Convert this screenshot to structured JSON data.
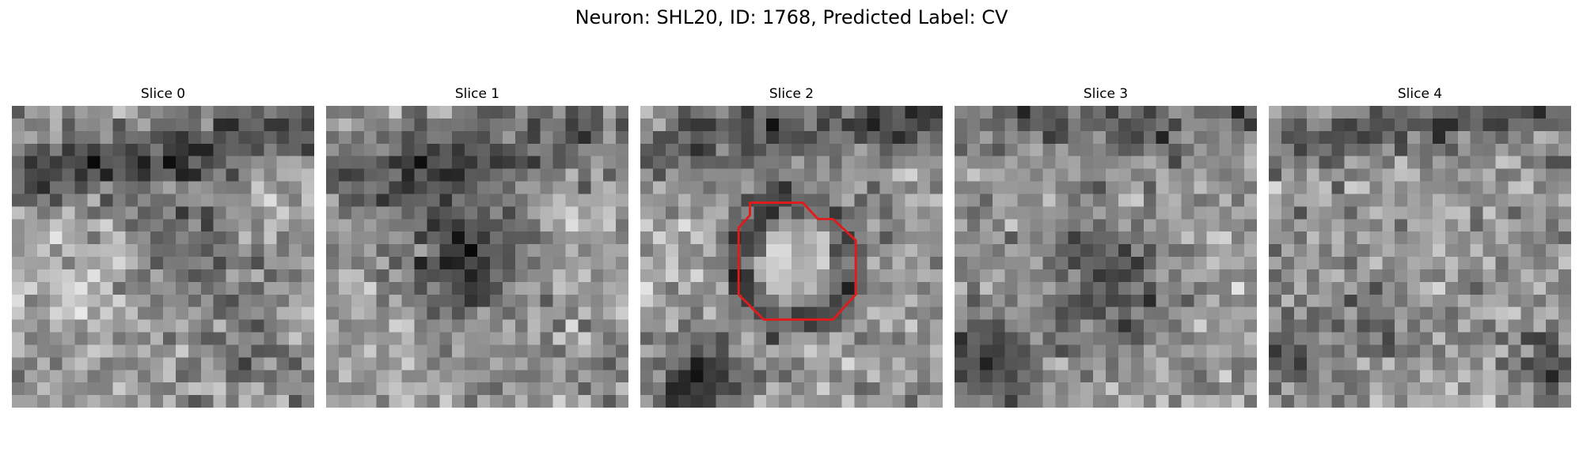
{
  "title": "Neuron: SHL20, ID: 1768, Predicted Label: CV",
  "grid_size": 24,
  "contour_color": "#e31a1c",
  "contour_slice": 2,
  "contour_points": [
    [
      8.7,
      7.7
    ],
    [
      12.9,
      7.7
    ],
    [
      14.1,
      9.0
    ],
    [
      15.3,
      9.0
    ],
    [
      17.1,
      10.7
    ],
    [
      17.1,
      15.0
    ],
    [
      15.3,
      17.0
    ],
    [
      9.8,
      17.0
    ],
    [
      7.8,
      15.0
    ],
    [
      7.8,
      9.7
    ],
    [
      8.7,
      8.7
    ]
  ],
  "slices": [
    {
      "title": "Slice 0",
      "features": [
        {
          "type": "band",
          "y0": 6.0,
          "y1": 2.0,
          "s": -85,
          "w": 1.8
        },
        {
          "type": "blob",
          "x": 14.2,
          "y": 10.7,
          "r": 3.2,
          "s": -60
        },
        {
          "type": "blob",
          "x": 5.0,
          "y": 13.0,
          "r": 3.0,
          "s": 45
        },
        {
          "type": "blob",
          "x": 19.0,
          "y": 19.0,
          "r": 2.2,
          "s": -40
        },
        {
          "type": "blob",
          "x": 19.0,
          "y": 6.5,
          "r": 2.5,
          "s": 35
        }
      ]
    },
    {
      "title": "Slice 1",
      "features": [
        {
          "type": "band",
          "y0": 6.0,
          "y1": 2.0,
          "s": -55,
          "w": 2.0
        },
        {
          "type": "blob",
          "x": 10.8,
          "y": 10.6,
          "r": 4.0,
          "s": -70
        },
        {
          "type": "blob",
          "x": 10.6,
          "y": 14.0,
          "r": 2.0,
          "s": -40
        },
        {
          "type": "blob",
          "x": 19.5,
          "y": 9.0,
          "r": 2.5,
          "s": 30
        },
        {
          "type": "blob",
          "x": 4.0,
          "y": 20.0,
          "r": 3.0,
          "s": 15
        }
      ]
    },
    {
      "title": "Slice 2",
      "features": [
        {
          "type": "band",
          "y0": 3.5,
          "y1": 1.2,
          "s": -75,
          "w": 1.4
        },
        {
          "type": "ring",
          "x": 12.2,
          "y": 12.3,
          "r": 4.5,
          "s": -85,
          "w": 1.1
        },
        {
          "type": "blob",
          "x": 12.2,
          "y": 12.3,
          "r": 2.8,
          "s": 55
        },
        {
          "type": "blob",
          "x": 4.3,
          "y": 22.5,
          "r": 2.6,
          "s": -110
        },
        {
          "type": "blob",
          "x": 1.5,
          "y": 11.0,
          "r": 2.0,
          "s": 40
        }
      ]
    },
    {
      "title": "Slice 3",
      "features": [
        {
          "type": "band",
          "y0": 1.5,
          "y1": 1.5,
          "s": -60,
          "w": 1.6
        },
        {
          "type": "blob",
          "x": 12.3,
          "y": 13.1,
          "r": 3.7,
          "s": -80
        },
        {
          "type": "blob",
          "x": 1.0,
          "y": 20.0,
          "r": 3.0,
          "s": -75
        },
        {
          "type": "blob",
          "x": 4.0,
          "y": 20.5,
          "r": 2.0,
          "s": -40
        },
        {
          "type": "blob",
          "x": 17.0,
          "y": 10.0,
          "r": 3.0,
          "s": 25
        }
      ]
    },
    {
      "title": "Slice 4",
      "features": [
        {
          "type": "band",
          "y0": 3.0,
          "y1": 0.5,
          "s": -65,
          "w": 1.4
        },
        {
          "type": "blob",
          "x": 1.5,
          "y": 20.0,
          "r": 2.5,
          "s": -55
        },
        {
          "type": "blob",
          "x": 22.5,
          "y": 20.5,
          "r": 2.0,
          "s": -70
        },
        {
          "type": "blob",
          "x": 12.0,
          "y": 12.0,
          "r": 4.0,
          "s": 10
        },
        {
          "type": "blob",
          "x": 8.0,
          "y": 17.0,
          "r": 3.0,
          "s": -25
        }
      ]
    }
  ]
}
